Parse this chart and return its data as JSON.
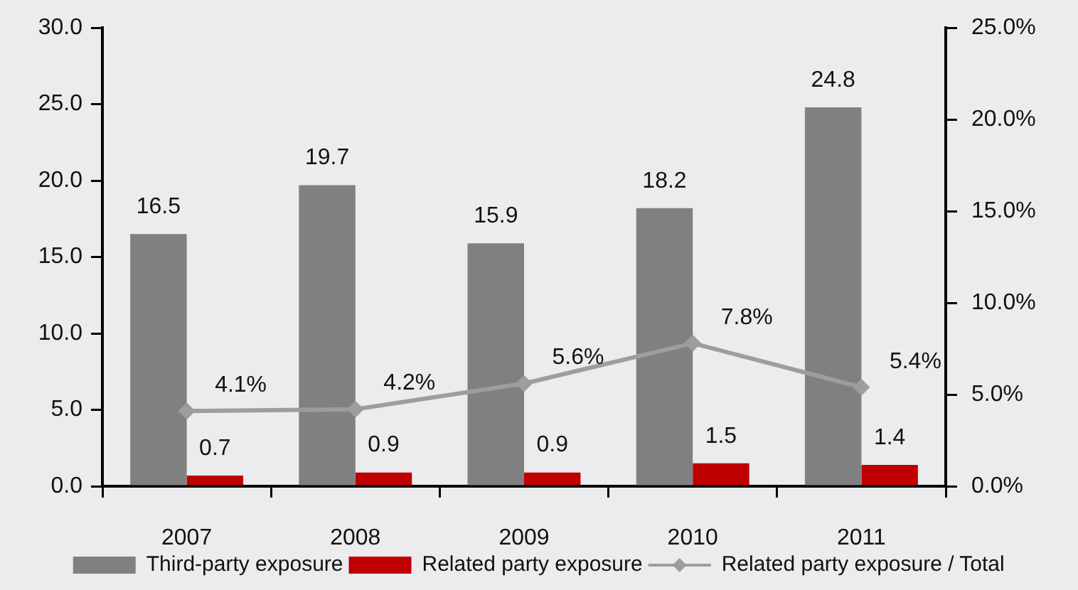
{
  "chart_data": {
    "type": "bar",
    "categories": [
      "2007",
      "2008",
      "2009",
      "2010",
      "2011"
    ],
    "series": [
      {
        "name": "Third-party exposure",
        "color": "#808080",
        "values": [
          16.5,
          19.7,
          15.9,
          18.2,
          24.8
        ],
        "value_labels": [
          "16.5",
          "19.7",
          "15.9",
          "18.2",
          "24.8"
        ]
      },
      {
        "name": "Related party exposure",
        "color": "#c00000",
        "values": [
          0.7,
          0.9,
          0.9,
          1.5,
          1.4
        ],
        "value_labels": [
          "0.7",
          "0.9",
          "0.9",
          "1.5",
          "1.4"
        ]
      },
      {
        "name": "Related party exposure / Total",
        "type": "line",
        "axis": "y2",
        "color": "#9d9d9d",
        "marker": "diamond",
        "values": [
          4.1,
          4.2,
          5.6,
          7.8,
          5.4
        ],
        "value_labels": [
          "4.1%",
          "4.2%",
          "5.6%",
          "7.8%",
          "5.4%"
        ]
      }
    ],
    "ylim": [
      0,
      30
    ],
    "yticks": [
      {
        "value": 0,
        "label": "0.0"
      },
      {
        "value": 5,
        "label": "5.0"
      },
      {
        "value": 10,
        "label": "10.0"
      },
      {
        "value": 15,
        "label": "15.0"
      },
      {
        "value": 20,
        "label": "20.0"
      },
      {
        "value": 25,
        "label": "25.0"
      },
      {
        "value": 30,
        "label": "30.0"
      }
    ],
    "y2lim": [
      0,
      25
    ],
    "y2ticks": [
      {
        "value": 0,
        "label": "0.0%"
      },
      {
        "value": 5,
        "label": "5.0%"
      },
      {
        "value": 10,
        "label": "10.0%"
      },
      {
        "value": 15,
        "label": "15.0%"
      },
      {
        "value": 20,
        "label": "20.0%"
      },
      {
        "value": 25,
        "label": "25.0%"
      }
    ],
    "legend": "bottom"
  }
}
